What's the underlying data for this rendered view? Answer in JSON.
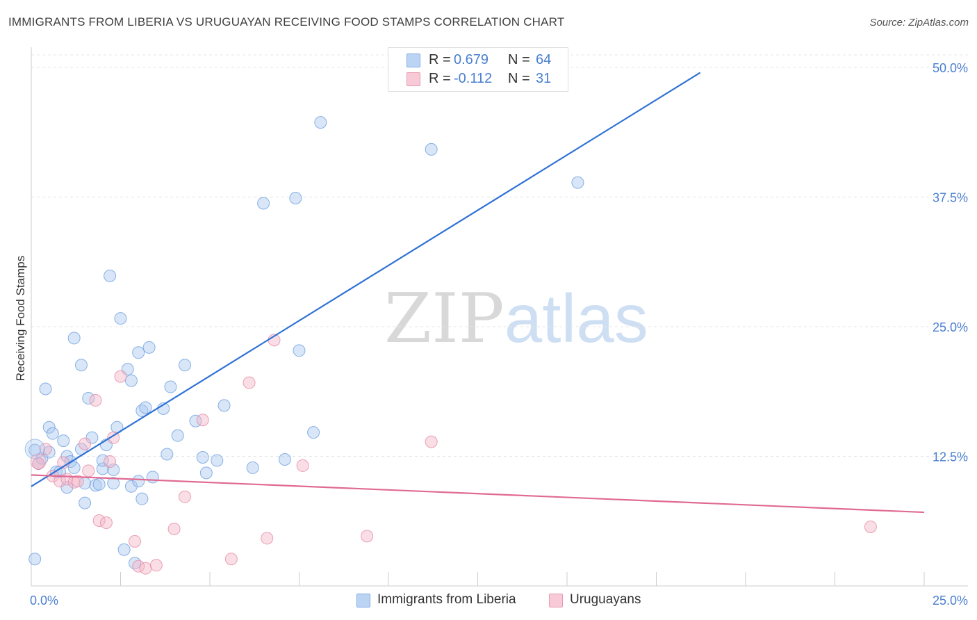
{
  "title": "IMMIGRANTS FROM LIBERIA VS URUGUAYAN RECEIVING FOOD STAMPS CORRELATION CHART",
  "source": "Source: ZipAtlas.com",
  "watermark": {
    "zip": "ZIP",
    "atlas": "atlas"
  },
  "legend": {
    "blue": {
      "r_label": "R =",
      "r_value": "0.679",
      "n_label": "N =",
      "n_value": "64",
      "color": "#a9c8f0"
    },
    "pink": {
      "r_label": "R =",
      "r_value": "-0.112",
      "n_label": "N =",
      "n_value": "31",
      "color": "#f5b5c8"
    }
  },
  "bottom_legend": {
    "blue_label": "Immigrants from Liberia",
    "pink_label": "Uruguayans"
  },
  "chart_data": {
    "type": "scatter",
    "title": "IMMIGRANTS FROM LIBERIA VS URUGUAYAN RECEIVING FOOD STAMPS CORRELATION CHART",
    "xlabel": "",
    "ylabel": "Receiving Food Stamps",
    "xlim": [
      0,
      25
    ],
    "ylim": [
      0,
      50
    ],
    "x_tick_labels": [
      "0.0%",
      "25.0%"
    ],
    "y_ticks": [
      12.5,
      25.0,
      37.5,
      50.0
    ],
    "y_tick_labels": [
      "12.5%",
      "25.0%",
      "37.5%",
      "50.0%"
    ],
    "grid": true,
    "series": [
      {
        "name": "Immigrants from Liberia",
        "color": "#a9c8f0",
        "stroke": "#6e9fe0",
        "line_color": "#2f72d4",
        "trend": {
          "x": [
            0,
            18.73
          ],
          "y": [
            9.6,
            49.5
          ]
        },
        "points": [
          [
            0.1,
            13.1
          ],
          [
            0.2,
            11.8
          ],
          [
            0.3,
            12.3
          ],
          [
            0.4,
            19.0
          ],
          [
            0.5,
            12.9
          ],
          [
            0.5,
            15.3
          ],
          [
            0.6,
            14.7
          ],
          [
            0.7,
            11.0
          ],
          [
            0.8,
            11.0
          ],
          [
            0.9,
            14.0
          ],
          [
            1.0,
            9.5
          ],
          [
            1.0,
            12.5
          ],
          [
            1.1,
            12.0
          ],
          [
            1.2,
            11.4
          ],
          [
            1.2,
            23.9
          ],
          [
            1.4,
            13.2
          ],
          [
            1.4,
            21.3
          ],
          [
            1.5,
            9.9
          ],
          [
            1.5,
            8.0
          ],
          [
            1.6,
            18.1
          ],
          [
            1.7,
            14.3
          ],
          [
            1.8,
            9.7
          ],
          [
            1.9,
            9.8
          ],
          [
            2.0,
            11.3
          ],
          [
            2.0,
            12.1
          ],
          [
            2.1,
            13.6
          ],
          [
            2.2,
            29.9
          ],
          [
            2.3,
            11.2
          ],
          [
            2.3,
            9.9
          ],
          [
            2.4,
            15.3
          ],
          [
            2.5,
            25.8
          ],
          [
            2.6,
            3.5
          ],
          [
            2.7,
            20.9
          ],
          [
            2.8,
            19.8
          ],
          [
            2.8,
            9.6
          ],
          [
            2.9,
            2.2
          ],
          [
            3.0,
            10.1
          ],
          [
            3.0,
            22.5
          ],
          [
            3.1,
            16.9
          ],
          [
            3.1,
            8.4
          ],
          [
            3.2,
            17.2
          ],
          [
            3.3,
            23.0
          ],
          [
            3.4,
            10.5
          ],
          [
            3.7,
            17.1
          ],
          [
            3.8,
            12.7
          ],
          [
            3.9,
            19.2
          ],
          [
            4.1,
            14.5
          ],
          [
            4.3,
            21.3
          ],
          [
            4.6,
            15.9
          ],
          [
            4.8,
            12.4
          ],
          [
            4.9,
            10.9
          ],
          [
            5.2,
            12.1
          ],
          [
            5.4,
            17.4
          ],
          [
            6.2,
            11.4
          ],
          [
            6.5,
            36.9
          ],
          [
            7.1,
            12.2
          ],
          [
            7.4,
            37.4
          ],
          [
            7.5,
            22.7
          ],
          [
            7.9,
            14.8
          ],
          [
            8.1,
            44.7
          ],
          [
            11.2,
            42.1
          ],
          [
            13.2,
            49.9
          ],
          [
            15.3,
            38.9
          ],
          [
            0.1,
            2.6
          ]
        ]
      },
      {
        "name": "Uruguayans",
        "color": "#f5b5c8",
        "stroke": "#e58aa6",
        "line_color": "#e06a93",
        "trend": {
          "x": [
            0,
            25
          ],
          "y": [
            10.7,
            7.1
          ]
        },
        "points": [
          [
            0.2,
            11.8
          ],
          [
            0.4,
            13.2
          ],
          [
            0.6,
            10.6
          ],
          [
            0.8,
            10.1
          ],
          [
            0.9,
            11.9
          ],
          [
            1.0,
            10.3
          ],
          [
            1.2,
            10.0
          ],
          [
            1.3,
            10.1
          ],
          [
            1.5,
            13.7
          ],
          [
            1.6,
            11.1
          ],
          [
            1.8,
            17.9
          ],
          [
            1.9,
            6.3
          ],
          [
            2.1,
            6.1
          ],
          [
            2.2,
            12.0
          ],
          [
            2.3,
            14.3
          ],
          [
            2.5,
            20.2
          ],
          [
            2.9,
            4.3
          ],
          [
            3.0,
            1.9
          ],
          [
            3.2,
            1.7
          ],
          [
            3.5,
            2.0
          ],
          [
            4.0,
            5.5
          ],
          [
            4.3,
            8.6
          ],
          [
            4.8,
            16.0
          ],
          [
            5.6,
            2.6
          ],
          [
            6.1,
            19.6
          ],
          [
            6.6,
            4.6
          ],
          [
            6.8,
            23.7
          ],
          [
            7.6,
            11.6
          ],
          [
            9.4,
            4.8
          ],
          [
            11.2,
            13.9
          ],
          [
            23.5,
            5.7
          ]
        ]
      }
    ]
  }
}
